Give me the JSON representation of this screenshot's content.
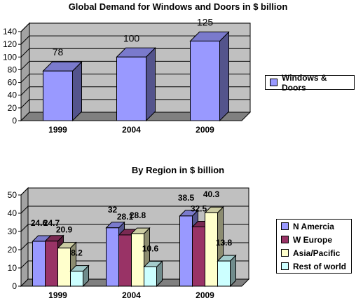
{
  "chart_data": [
    {
      "type": "bar",
      "title": "Global Demand for Windows and Doors in $ billion",
      "categories": [
        "1999",
        "2004",
        "2009"
      ],
      "series": [
        {
          "name": "Windows & Doors",
          "values": [
            78,
            100,
            125
          ],
          "color": "#9999FF"
        }
      ],
      "data_labels": [
        "78",
        "100",
        "125"
      ],
      "ylim": [
        0,
        140
      ],
      "yticks": [
        "0",
        "20",
        "40",
        "60",
        "80",
        "100",
        "120",
        "140"
      ],
      "grid": true,
      "legend_position": "right",
      "three_d": true
    },
    {
      "type": "bar",
      "title": "By Region in $ billion",
      "categories": [
        "1999",
        "2004",
        "2009"
      ],
      "series": [
        {
          "name": "N Amercia",
          "values": [
            24.6,
            32,
            38.5
          ],
          "color": "#9999FF"
        },
        {
          "name": "W Europe",
          "values": [
            24.7,
            28.1,
            32.5
          ],
          "color": "#993366"
        },
        {
          "name": "Asia/Pacific",
          "values": [
            20.9,
            28.8,
            40.3
          ],
          "color": "#FFFFCC"
        },
        {
          "name": "Rest of world",
          "values": [
            8.2,
            10.6,
            13.8
          ],
          "color": "#CCFFFF"
        }
      ],
      "data_labels": [
        [
          "24.6",
          "32",
          "38.5"
        ],
        [
          "24.7",
          "28.1",
          "32.5"
        ],
        [
          "20.9",
          "28.8",
          "40.3"
        ],
        [
          "8.2",
          "10.6",
          "13.8"
        ]
      ],
      "ylim": [
        0,
        50
      ],
      "yticks": [
        "0",
        "10",
        "20",
        "30",
        "40",
        "50"
      ],
      "grid": true,
      "legend_position": "right",
      "three_d": true
    }
  ],
  "colors": {
    "plot_wall": "#C0C0C0",
    "floor": "#808080",
    "grid": "#000000"
  }
}
